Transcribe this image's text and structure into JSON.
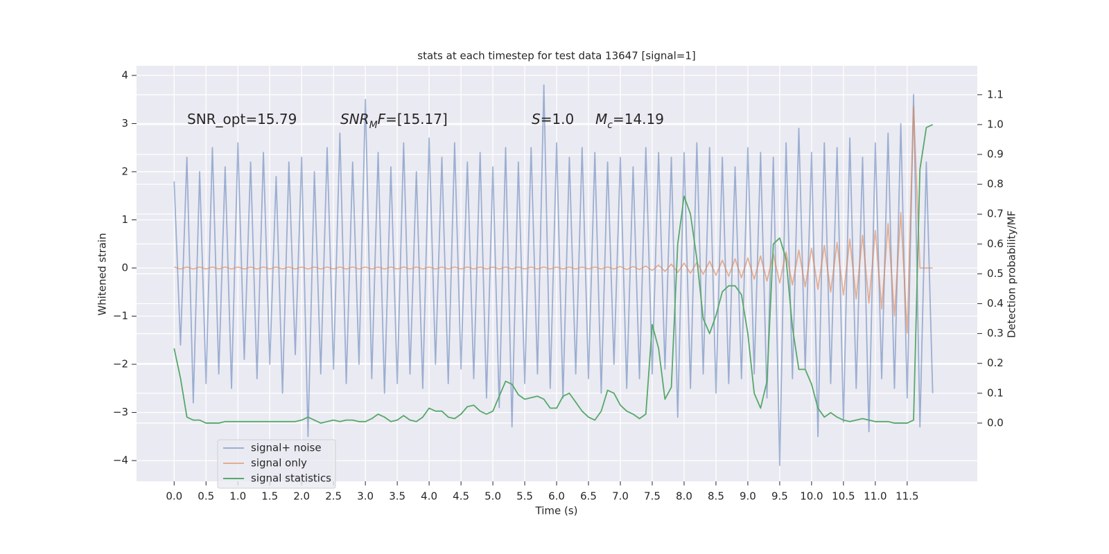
{
  "chart_data": {
    "type": "line",
    "title": "stats at each timestep for test data 13647 [signal=1]",
    "xlabel": "Time (s)",
    "ylabel": "Whitened strain",
    "y2label": "Detection probability/MF",
    "x": [
      0.0,
      0.1,
      0.2,
      0.3,
      0.4,
      0.5,
      0.6,
      0.7,
      0.8,
      0.9,
      1.0,
      1.1,
      1.2,
      1.3,
      1.4,
      1.5,
      1.6,
      1.7,
      1.8,
      1.9,
      2.0,
      2.1,
      2.2,
      2.3,
      2.4,
      2.5,
      2.6,
      2.7,
      2.8,
      2.9,
      3.0,
      3.1,
      3.2,
      3.3,
      3.4,
      3.5,
      3.6,
      3.7,
      3.8,
      3.9,
      4.0,
      4.1,
      4.2,
      4.3,
      4.4,
      4.5,
      4.6,
      4.7,
      4.8,
      4.9,
      5.0,
      5.1,
      5.2,
      5.3,
      5.4,
      5.5,
      5.6,
      5.7,
      5.8,
      5.9,
      6.0,
      6.1,
      6.2,
      6.3,
      6.4,
      6.5,
      6.6,
      6.7,
      6.8,
      6.9,
      7.0,
      7.1,
      7.2,
      7.3,
      7.4,
      7.5,
      7.6,
      7.7,
      7.8,
      7.9,
      8.0,
      8.1,
      8.2,
      8.3,
      8.4,
      8.5,
      8.6,
      8.7,
      8.8,
      8.9,
      9.0,
      9.1,
      9.2,
      9.3,
      9.4,
      9.5,
      9.6,
      9.7,
      9.8,
      9.9,
      10.0,
      10.1,
      10.2,
      10.3,
      10.4,
      10.5,
      10.6,
      10.7,
      10.8,
      10.9,
      11.0,
      11.1,
      11.2,
      11.3,
      11.4,
      11.5,
      11.6,
      11.7,
      11.8,
      11.9
    ],
    "series": [
      {
        "name": "signal+ noise",
        "color": "#4c72b0",
        "alpha": 0.5,
        "values": [
          1.8,
          -1.6,
          2.3,
          -2.8,
          2.0,
          -2.4,
          2.5,
          -2.2,
          2.1,
          -2.5,
          2.6,
          -1.9,
          2.2,
          -2.3,
          2.4,
          -2.0,
          1.9,
          -2.6,
          2.2,
          -1.8,
          2.3,
          -3.5,
          2.0,
          -2.2,
          2.5,
          -2.1,
          2.8,
          -2.4,
          2.2,
          -2.0,
          3.5,
          -2.3,
          2.4,
          -2.6,
          2.1,
          -2.4,
          2.6,
          -2.2,
          2.0,
          -2.5,
          2.7,
          -2.0,
          2.3,
          -2.4,
          2.6,
          -2.1,
          2.2,
          -2.3,
          2.4,
          -2.7,
          2.1,
          -2.9,
          2.5,
          -3.3,
          2.2,
          -2.4,
          2.5,
          -2.2,
          3.8,
          -2.5,
          2.6,
          -2.7,
          2.3,
          -2.2,
          2.5,
          -2.3,
          2.4,
          -2.6,
          2.2,
          -2.0,
          2.3,
          -2.5,
          2.1,
          -2.3,
          2.5,
          -2.2,
          2.4,
          -2.1,
          2.3,
          -3.1,
          2.4,
          -2.5,
          2.6,
          -2.2,
          2.5,
          -2.6,
          2.3,
          -2.4,
          2.1,
          -2.3,
          2.5,
          -2.2,
          2.4,
          -2.7,
          2.3,
          -4.1,
          2.6,
          -2.3,
          2.9,
          -2.1,
          2.4,
          -3.5,
          2.6,
          -2.4,
          2.5,
          -3.2,
          2.7,
          -2.5,
          2.3,
          -3.4,
          2.6,
          -2.3,
          2.8,
          -2.5,
          3.0,
          -2.7,
          3.6,
          -3.3,
          2.2,
          -2.6
        ]
      },
      {
        "name": "signal only",
        "color": "#dd8452",
        "alpha": 0.6,
        "values": [
          0.02,
          -0.02,
          0.02,
          -0.02,
          0.02,
          -0.02,
          0.02,
          -0.02,
          0.02,
          -0.02,
          0.02,
          -0.02,
          0.02,
          -0.02,
          0.02,
          -0.02,
          0.02,
          -0.02,
          0.02,
          -0.02,
          0.02,
          -0.02,
          0.02,
          -0.02,
          0.02,
          -0.02,
          0.02,
          -0.02,
          0.02,
          -0.02,
          0.02,
          -0.02,
          0.02,
          -0.02,
          0.02,
          -0.02,
          0.02,
          -0.02,
          0.02,
          -0.02,
          0.02,
          -0.02,
          0.02,
          -0.02,
          0.02,
          -0.02,
          0.02,
          -0.02,
          0.02,
          -0.02,
          0.02,
          -0.02,
          0.02,
          -0.02,
          0.02,
          -0.02,
          0.02,
          -0.02,
          0.02,
          -0.02,
          0.02,
          -0.02,
          0.02,
          -0.02,
          0.02,
          -0.02,
          0.02,
          -0.02,
          0.02,
          -0.02,
          0.03,
          -0.03,
          0.03,
          -0.03,
          0.04,
          -0.05,
          0.06,
          -0.07,
          0.08,
          -0.09,
          0.1,
          -0.11,
          0.12,
          -0.13,
          0.14,
          -0.15,
          0.16,
          -0.17,
          0.19,
          -0.2,
          0.21,
          -0.23,
          0.25,
          -0.27,
          0.29,
          -0.31,
          0.33,
          -0.35,
          0.37,
          -0.39,
          0.41,
          -0.44,
          0.47,
          -0.5,
          0.53,
          -0.56,
          0.6,
          -0.64,
          0.68,
          -0.73,
          0.78,
          -0.85,
          0.92,
          -1.0,
          1.15,
          -1.35,
          3.35,
          0,
          0,
          0
        ]
      },
      {
        "name": "signal statistics",
        "color": "#55a868",
        "axis": "y2",
        "values": [
          0.25,
          0.15,
          0.02,
          0.01,
          0.01,
          0.0,
          0.0,
          0.0,
          0.005,
          0.005,
          0.005,
          0.005,
          0.005,
          0.005,
          0.005,
          0.005,
          0.005,
          0.005,
          0.005,
          0.005,
          0.01,
          0.02,
          0.01,
          0.0,
          0.005,
          0.01,
          0.005,
          0.01,
          0.01,
          0.005,
          0.005,
          0.015,
          0.03,
          0.02,
          0.005,
          0.01,
          0.025,
          0.01,
          0.005,
          0.02,
          0.05,
          0.04,
          0.04,
          0.02,
          0.015,
          0.03,
          0.055,
          0.06,
          0.04,
          0.03,
          0.04,
          0.09,
          0.14,
          0.13,
          0.095,
          0.08,
          0.085,
          0.09,
          0.08,
          0.05,
          0.05,
          0.09,
          0.1,
          0.07,
          0.04,
          0.02,
          0.01,
          0.04,
          0.11,
          0.1,
          0.06,
          0.04,
          0.03,
          0.015,
          0.03,
          0.33,
          0.25,
          0.08,
          0.12,
          0.6,
          0.76,
          0.7,
          0.55,
          0.35,
          0.3,
          0.36,
          0.44,
          0.46,
          0.46,
          0.43,
          0.3,
          0.1,
          0.05,
          0.14,
          0.6,
          0.62,
          0.55,
          0.32,
          0.18,
          0.18,
          0.13,
          0.05,
          0.02,
          0.035,
          0.02,
          0.01,
          0.005,
          0.01,
          0.015,
          0.01,
          0.005,
          0.005,
          0.005,
          0.0,
          0.0,
          0.0,
          0.01,
          0.85,
          0.99,
          1.0
        ]
      }
    ],
    "xlim": [
      -0.59,
      12.6
    ],
    "ylim": [
      -4.43,
      4.2
    ],
    "y2lim": [
      -0.195,
      1.197
    ],
    "xticks": [
      {
        "value": 0,
        "label": "0.0"
      },
      0.5,
      {
        "value": 1,
        "label": "1.0"
      },
      1.5,
      {
        "value": 2,
        "label": "2.0"
      },
      2.5,
      {
        "value": 3,
        "label": "3.0"
      },
      3.5,
      {
        "value": 4,
        "label": "4.0"
      },
      4.5,
      {
        "value": 5,
        "label": "5.0"
      },
      5.5,
      {
        "value": 6,
        "label": "6.0"
      },
      6.5,
      {
        "value": 7,
        "label": "7.0"
      },
      7.5,
      {
        "value": 8,
        "label": "8.0"
      },
      8.5,
      {
        "value": 9,
        "label": "9.0"
      },
      9.5,
      {
        "value": 10,
        "label": "10.0"
      },
      10.5,
      {
        "value": 11,
        "label": "11.0"
      },
      11.5
    ],
    "yticks": [
      {
        "value": -4,
        "label": "−4"
      },
      {
        "value": -3,
        "label": "−3"
      },
      {
        "value": -2,
        "label": "−2"
      },
      {
        "value": -1,
        "label": "−1"
      },
      0,
      1,
      2,
      3,
      4
    ],
    "y2ticks": [
      {
        "value": 0,
        "label": "0.0"
      },
      0.1,
      0.2,
      0.3,
      0.4,
      0.5,
      0.6,
      0.7,
      0.8,
      0.9,
      {
        "value": 1,
        "label": "1.0"
      },
      1.1
    ],
    "grid": true,
    "legend": "lower left",
    "annotations": [
      [
        {
          "text": "SNR_opt=15.79",
          "style": "normal"
        }
      ],
      [
        {
          "text": "SNR",
          "style": "italic"
        },
        {
          "text": "M",
          "style": "sub"
        },
        {
          "text": "F",
          "style": "italic"
        },
        {
          "text": "=[15.17]",
          "style": "normal"
        }
      ],
      [
        {
          "text": "S",
          "style": "italic"
        },
        {
          "text": "=1.0",
          "style": "normal"
        }
      ],
      [
        {
          "text": "M",
          "style": "italic"
        },
        {
          "text": "c",
          "style": "sub"
        },
        {
          "text": "=14.19",
          "style": "normal"
        }
      ]
    ]
  }
}
